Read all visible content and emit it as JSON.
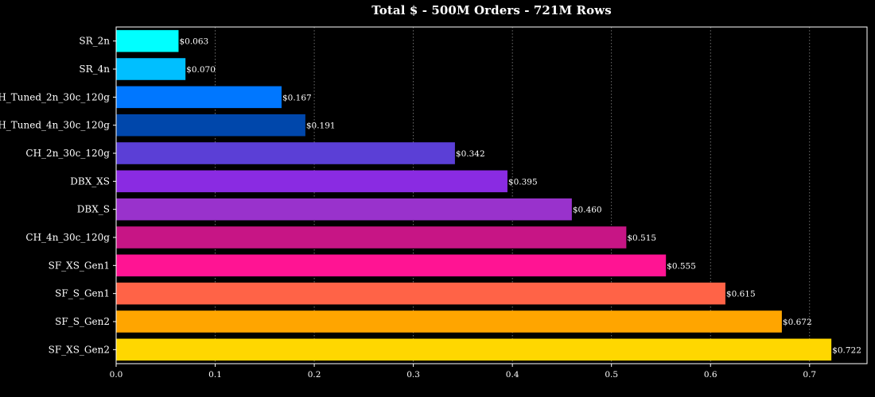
{
  "chart_data": {
    "type": "bar",
    "orientation": "horizontal",
    "title": "Total $ - 500M Orders - 721M Rows",
    "xlabel": "",
    "ylabel": "",
    "categories": [
      "SR_2n",
      "SR_4n",
      "CH_Tuned_2n_30c_120g",
      "CH_Tuned_4n_30c_120g",
      "CH_2n_30c_120g",
      "DBX_XS",
      "DBX_S",
      "CH_4n_30c_120g",
      "SF_XS_Gen1",
      "SF_S_Gen1",
      "SF_S_Gen2",
      "SF_XS_Gen2"
    ],
    "values": [
      0.063,
      0.07,
      0.167,
      0.191,
      0.342,
      0.395,
      0.46,
      0.515,
      0.555,
      0.615,
      0.672,
      0.722
    ],
    "value_labels": [
      "$0.063",
      "$0.070",
      "$0.167",
      "$0.191",
      "$0.342",
      "$0.395",
      "$0.460",
      "$0.515",
      "$0.555",
      "$0.615",
      "$0.672",
      "$0.722"
    ],
    "colors": [
      "#00ffff",
      "#00bfff",
      "#0077ff",
      "#0047ab",
      "#5b3fd6",
      "#8a2be2",
      "#9932cc",
      "#c71585",
      "#ff1493",
      "#ff6347",
      "#ffa500",
      "#ffd700"
    ],
    "xlim": [
      0,
      0.758
    ],
    "xticks": [
      0.0,
      0.1,
      0.2,
      0.3,
      0.4,
      0.5,
      0.6,
      0.7
    ],
    "xtick_labels": [
      "0.0",
      "0.1",
      "0.2",
      "0.3",
      "0.4",
      "0.5",
      "0.6",
      "0.7"
    ],
    "grid": "vertical-dotted",
    "legend": "none",
    "background": "#000000",
    "text_color": "#ffffff",
    "axis_color": "#ffffff",
    "grid_color": "#888888"
  }
}
